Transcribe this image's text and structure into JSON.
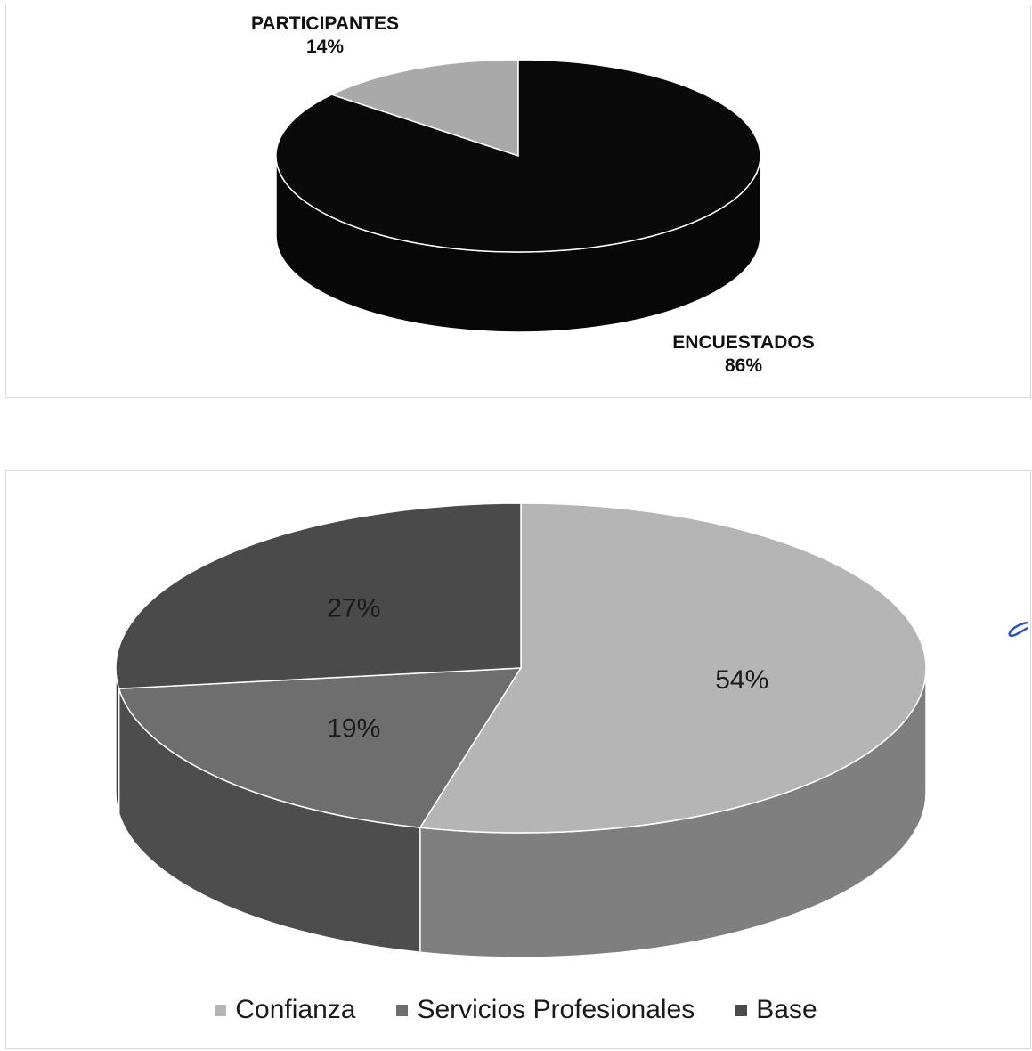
{
  "chart_data": [
    {
      "type": "pie",
      "title": "",
      "categories": [
        "PARTICIPANTES",
        "ENCUESTADOS"
      ],
      "values": [
        14,
        86
      ],
      "value_labels": [
        "14%",
        "86%"
      ],
      "colors": [
        "#a9a9a9",
        "#0a0a0a"
      ],
      "style": "3d-pie",
      "legend": "none"
    },
    {
      "type": "pie",
      "title": "",
      "categories": [
        "Confianza",
        "Servicios Profesionales",
        "Base"
      ],
      "values": [
        54,
        19,
        27
      ],
      "value_labels": [
        "54%",
        "19%",
        "27%"
      ],
      "colors": [
        "#b5b5b5",
        "#6e6e6e",
        "#4a4a4a"
      ],
      "style": "3d-pie",
      "legend": "bottom"
    }
  ],
  "legend": {
    "items": [
      {
        "label": "Confianza",
        "color": "#b5b5b5"
      },
      {
        "label": "Servicios Profesionales",
        "color": "#6e6e6e"
      },
      {
        "label": "Base",
        "color": "#4a4a4a"
      }
    ]
  }
}
